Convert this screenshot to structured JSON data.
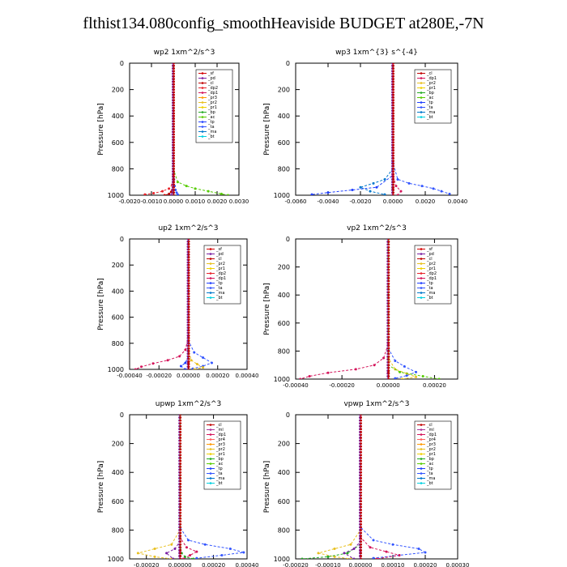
{
  "title": "flthist134.080config_smoothHeaviside  BUDGET at280E,-7N",
  "colors": {
    "_sf": "#d40000",
    "_pd": "#7a1fa2",
    "_cl": "#c00000",
    "_dp2": "#e8232a",
    "_dp1": "#d4145a",
    "_pr3": "#ff9900",
    "_pr2": "#e8c020",
    "_pr1": "#f0d000",
    "_bp": "#22aa22",
    "_ac": "#55cc00",
    "_tp": "#1f3fff",
    "_ta": "#3355ff",
    "_ma": "#0077cc",
    "_bt": "#00d0e0",
    "_ml": "#aa3399",
    "_dp4": "#b03060",
    "_pr4": "#ff6060"
  },
  "chart_data": [
    {
      "type": "line",
      "title": "wp2   1xm^2/s^3",
      "ylabel": "Pressure [hPa]",
      "ylim": [
        1000,
        0
      ],
      "xlim": [
        -0.002,
        0.003
      ],
      "xticks": [
        "-0.0020",
        "-0.0010",
        "0.0000",
        "0.0010",
        "0.0020",
        "0.0030"
      ],
      "yticks": [
        "0",
        "200",
        "400",
        "600",
        "800",
        "1000"
      ],
      "legend": [
        "_sf",
        "_pd",
        "_cl",
        "_dp2",
        "_dp1",
        "_pr3",
        "_pr2",
        "_pr1",
        "_bp",
        "_ac",
        "_tp",
        "_ta",
        "_ma",
        "_bt"
      ],
      "series": [
        {
          "name": "_cl",
          "x": [
            0,
            0,
            0,
            0,
            -2e-05,
            -5e-05,
            -0.0001,
            -0.0002,
            -0.0004
          ],
          "y": [
            0,
            400,
            800,
            900,
            940,
            960,
            975,
            990,
            1000
          ]
        },
        {
          "name": "_dp2",
          "x": [
            0,
            0,
            0,
            -5e-05,
            -0.0002,
            -0.0005,
            -0.0009,
            -0.0013
          ],
          "y": [
            0,
            600,
            850,
            920,
            950,
            970,
            985,
            995
          ]
        },
        {
          "name": "_ta",
          "x": [
            0,
            0,
            3e-05,
            6e-05,
            0.0001,
            0.00015,
            0.0002
          ],
          "y": [
            0,
            700,
            880,
            930,
            960,
            980,
            995
          ]
        },
        {
          "name": "_ac",
          "x": [
            0,
            0,
            0.0002,
            0.0006,
            0.001,
            0.0016,
            0.0022,
            0.0025
          ],
          "y": [
            0,
            800,
            900,
            930,
            950,
            970,
            990,
            1000
          ]
        },
        {
          "name": "_pd",
          "x": [
            0,
            0,
            0,
            -3e-05,
            -0.0001
          ],
          "y": [
            0,
            500,
            900,
            960,
            1000
          ]
        }
      ]
    },
    {
      "type": "line",
      "title": "wp3   1xm^{3} s^{-4}",
      "ylabel": "Pressure [hPa]",
      "ylim": [
        1000,
        0
      ],
      "xlim": [
        -0.006,
        0.004
      ],
      "xticks": [
        "-0.0060",
        "-0.0040",
        "-0.0020",
        "0.0000",
        "0.0020",
        "0.0040"
      ],
      "yticks": [
        "0",
        "200",
        "400",
        "600",
        "800",
        "1000"
      ],
      "legend": [
        "_cl",
        "_dp1",
        "_pr2",
        "_pr1",
        "_bp",
        "_ac",
        "_tp",
        "_ta",
        "_ma",
        "_bt"
      ],
      "series": [
        {
          "name": "_cl",
          "x": [
            0,
            0,
            0,
            0,
            0
          ],
          "y": [
            0,
            400,
            800,
            950,
            1000
          ]
        },
        {
          "name": "_ta",
          "x": [
            0,
            0,
            0.0003,
            0.001,
            0.0018,
            0.0025,
            0.003,
            0.0035
          ],
          "y": [
            0,
            750,
            880,
            910,
            930,
            950,
            970,
            990
          ]
        },
        {
          "name": "_ma",
          "x": [
            0,
            0,
            -0.0005,
            -0.0012,
            -0.002,
            -0.0014,
            -0.0005
          ],
          "y": [
            0,
            800,
            880,
            910,
            940,
            970,
            995
          ]
        },
        {
          "name": "_tp",
          "x": [
            0,
            0,
            -0.001,
            -0.0025,
            -0.004,
            -0.005
          ],
          "y": [
            0,
            850,
            940,
            960,
            980,
            995
          ]
        },
        {
          "name": "_dp1",
          "x": [
            0,
            0,
            0.0002,
            0.0005,
            0.0003
          ],
          "y": [
            0,
            850,
            930,
            970,
            1000
          ]
        }
      ]
    },
    {
      "type": "line",
      "title": "up2   1xm^2/s^3",
      "ylabel": "Pressure [hPa]",
      "ylim": [
        1000,
        0
      ],
      "xlim": [
        -0.0004,
        0.0004
      ],
      "xticks": [
        "-0.00040",
        "-0.00020",
        "0.00000",
        "0.00020",
        "0.00040"
      ],
      "yticks": [
        "0",
        "200",
        "400",
        "600",
        "800",
        "1000"
      ],
      "legend": [
        "_sf",
        "_pd",
        "_cl",
        "_pr2",
        "_pr1",
        "_dp2",
        "_dp1",
        "_tp",
        "_ta",
        "_ma",
        "_bt"
      ],
      "series": [
        {
          "name": "_cl",
          "x": [
            0,
            0,
            0,
            0,
            0
          ],
          "y": [
            0,
            400,
            800,
            950,
            1000
          ]
        },
        {
          "name": "_dp1",
          "x": [
            0,
            0,
            -2e-05,
            -6e-05,
            -0.00014,
            -0.00024,
            -0.00032,
            -0.00036
          ],
          "y": [
            0,
            750,
            850,
            900,
            930,
            955,
            980,
            1000
          ]
        },
        {
          "name": "_ta",
          "x": [
            0,
            0,
            4e-05,
            0.0001,
            0.00016,
            0.0001,
            3e-05
          ],
          "y": [
            0,
            780,
            870,
            910,
            950,
            975,
            995
          ]
        },
        {
          "name": "_pr2",
          "x": [
            0,
            0,
            2e-05,
            6e-05,
            0.0001,
            4e-05
          ],
          "y": [
            0,
            850,
            930,
            960,
            985,
            1000
          ]
        },
        {
          "name": "_tp",
          "x": [
            0,
            0,
            -2e-05,
            -5e-05,
            -2e-05
          ],
          "y": [
            0,
            900,
            950,
            975,
            1000
          ]
        }
      ]
    },
    {
      "type": "line",
      "title": "vp2   1xm^2/s^3",
      "ylabel": "Pressure [hPa]",
      "ylim": [
        1000,
        0
      ],
      "xlim": [
        -0.0004,
        0.0003
      ],
      "xticks": [
        "-0.00040",
        "-0.00020",
        "0.00000",
        "0.00020"
      ],
      "yticks": [
        "0",
        "200",
        "400",
        "600",
        "800",
        "1000"
      ],
      "legend": [
        "_sf",
        "_pd",
        "_cl",
        "_pr2",
        "_pr1",
        "_dp2",
        "_dp1",
        "_tp",
        "_ta",
        "_ma",
        "_bt"
      ],
      "series": [
        {
          "name": "_cl",
          "x": [
            0,
            0,
            0,
            0,
            0
          ],
          "y": [
            0,
            400,
            800,
            950,
            1000
          ]
        },
        {
          "name": "_dp1",
          "x": [
            0,
            0,
            -2e-05,
            -6e-05,
            -0.00014,
            -0.00026,
            -0.00034,
            -0.00038
          ],
          "y": [
            0,
            750,
            850,
            900,
            930,
            955,
            980,
            1000
          ]
        },
        {
          "name": "_ta",
          "x": [
            0,
            0,
            3e-05,
            7e-05,
            0.00012,
            8e-05,
            3e-05
          ],
          "y": [
            0,
            780,
            870,
            910,
            950,
            975,
            995
          ]
        },
        {
          "name": "_pr2",
          "x": [
            0,
            0,
            3e-05,
            8e-05,
            0.00012,
            6e-05
          ],
          "y": [
            0,
            850,
            930,
            960,
            985,
            1000
          ]
        },
        {
          "name": "_ac",
          "x": [
            0,
            0,
            5e-05,
            0.00015,
            0.00022
          ],
          "y": [
            0,
            900,
            950,
            980,
            1000
          ]
        }
      ]
    },
    {
      "type": "line",
      "title": "upwp   1xm^2/s^3",
      "ylabel": "Pressure [hPa]",
      "ylim": [
        1000,
        0
      ],
      "xlim": [
        -0.0003,
        0.0004
      ],
      "xticks": [
        "-0.00020",
        "0.00000",
        "0.00020",
        "0.00040"
      ],
      "yticks": [
        "0",
        "200",
        "400",
        "600",
        "800",
        "1000"
      ],
      "legend": [
        "_cl",
        "_ml",
        "_dp1",
        "_pr4",
        "_pr3",
        "_pr2",
        "_pr1",
        "_bp",
        "_ac",
        "_tp",
        "_ta",
        "_ma",
        "_bt"
      ],
      "series": [
        {
          "name": "_ml",
          "x": [
            0,
            0,
            0,
            0,
            0
          ],
          "y": [
            0,
            400,
            800,
            950,
            1000
          ]
        },
        {
          "name": "_ta",
          "x": [
            0,
            0,
            5e-05,
            0.00015,
            0.0003,
            0.00038,
            0.00025,
            0.0001
          ],
          "y": [
            0,
            780,
            870,
            900,
            930,
            955,
            975,
            995
          ]
        },
        {
          "name": "_pr2",
          "x": [
            0,
            0,
            -5e-05,
            -0.00015,
            -0.00025,
            -0.00015,
            -5e-05
          ],
          "y": [
            0,
            800,
            900,
            930,
            960,
            985,
            1000
          ]
        },
        {
          "name": "_dp1",
          "x": [
            0,
            0,
            4e-05,
            0.0001,
            6e-05,
            2e-05
          ],
          "y": [
            0,
            850,
            920,
            950,
            975,
            1000
          ]
        },
        {
          "name": "_pd",
          "x": [
            0,
            0,
            -3e-05,
            -8e-05,
            -4e-05
          ],
          "y": [
            0,
            880,
            930,
            960,
            1000
          ]
        },
        {
          "name": "_bp",
          "x": [
            0,
            0,
            1e-05,
            3e-05,
            8e-05
          ],
          "y": [
            0,
            900,
            960,
            985,
            1000
          ]
        }
      ]
    },
    {
      "type": "line",
      "title": "vpwp   1xm^2/s^3",
      "ylabel": "Pressure [hPa]",
      "ylim": [
        1000,
        0
      ],
      "xlim": [
        -0.0002,
        0.0003
      ],
      "xticks": [
        "-0.00020",
        "-0.00010",
        "0.00000",
        "0.00010",
        "0.00020",
        "0.00030"
      ],
      "yticks": [
        "0",
        "200",
        "400",
        "600",
        "800",
        "1000"
      ],
      "legend": [
        "_cl",
        "_ml",
        "_dp1",
        "_pr4",
        "_pr3",
        "_pr2",
        "_pr1",
        "_bp",
        "_ac",
        "_tp",
        "_ta",
        "_ma",
        "_bt"
      ],
      "series": [
        {
          "name": "_ml",
          "x": [
            0,
            0,
            0,
            0,
            0
          ],
          "y": [
            0,
            400,
            800,
            950,
            1000
          ]
        },
        {
          "name": "_ta",
          "x": [
            0,
            0,
            4e-05,
            0.0001,
            0.00018,
            0.0002,
            0.00012,
            4e-05
          ],
          "y": [
            0,
            780,
            870,
            900,
            930,
            955,
            975,
            995
          ]
        },
        {
          "name": "_pr2",
          "x": [
            0,
            0,
            -3e-05,
            -8e-05,
            -0.00013,
            -8e-05,
            -3e-05
          ],
          "y": [
            0,
            800,
            900,
            930,
            960,
            985,
            1000
          ]
        },
        {
          "name": "_dp1",
          "x": [
            0,
            0,
            3e-05,
            8e-05,
            0.00012,
            5e-05
          ],
          "y": [
            0,
            850,
            920,
            950,
            975,
            1000
          ]
        },
        {
          "name": "_bp",
          "x": [
            0,
            0,
            -4e-05,
            -0.0001,
            -0.00018
          ],
          "y": [
            0,
            900,
            960,
            985,
            1000
          ]
        },
        {
          "name": "_pd",
          "x": [
            0,
            0,
            -2e-05,
            -5e-05,
            -2e-05
          ],
          "y": [
            0,
            880,
            930,
            960,
            1000
          ]
        }
      ]
    }
  ]
}
